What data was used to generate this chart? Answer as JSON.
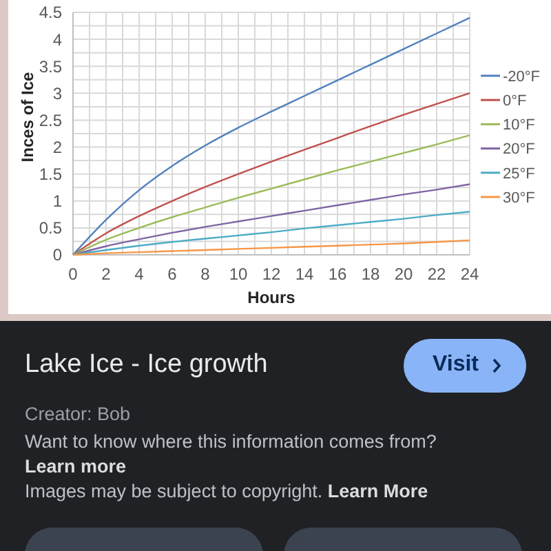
{
  "chart_data": {
    "type": "line",
    "title": "Lake Ice - Ice growth",
    "xlabel": "Hours",
    "ylabel": "Inces of Ice",
    "x": [
      0,
      2,
      4,
      6,
      8,
      10,
      12,
      14,
      16,
      18,
      20,
      22,
      24
    ],
    "series": [
      {
        "name": "-20°F",
        "color": "#4f81bd",
        "values": [
          0,
          0.65,
          1.2,
          1.65,
          2.03,
          2.36,
          2.66,
          2.95,
          3.24,
          3.53,
          3.82,
          4.11,
          4.4
        ]
      },
      {
        "name": "0°F",
        "color": "#c0504d",
        "values": [
          0,
          0.4,
          0.72,
          1.0,
          1.26,
          1.5,
          1.73,
          1.95,
          2.17,
          2.39,
          2.6,
          2.8,
          3.0
        ]
      },
      {
        "name": "10°F",
        "color": "#9bbb59",
        "values": [
          0,
          0.28,
          0.5,
          0.7,
          0.88,
          1.06,
          1.23,
          1.4,
          1.57,
          1.73,
          1.89,
          2.05,
          2.22
        ]
      },
      {
        "name": "20°F",
        "color": "#8064a2",
        "values": [
          0,
          0.16,
          0.29,
          0.41,
          0.52,
          0.62,
          0.72,
          0.82,
          0.92,
          1.02,
          1.12,
          1.21,
          1.31
        ]
      },
      {
        "name": "25°F",
        "color": "#4bacc6",
        "values": [
          0,
          0.09,
          0.17,
          0.24,
          0.3,
          0.36,
          0.42,
          0.49,
          0.55,
          0.61,
          0.67,
          0.74,
          0.8
        ]
      },
      {
        "name": "30°F",
        "color": "#f79646",
        "values": [
          0,
          0.03,
          0.05,
          0.07,
          0.09,
          0.11,
          0.13,
          0.15,
          0.17,
          0.19,
          0.21,
          0.24,
          0.27
        ]
      }
    ],
    "xlim": [
      0,
      24
    ],
    "xticks": [
      0,
      {
        "value": 1,
        "label": null
      },
      2,
      {
        "value": 3,
        "label": null
      },
      4,
      {
        "value": 5,
        "label": null
      },
      6,
      {
        "value": 7,
        "label": null
      },
      8,
      {
        "value": 9,
        "label": null
      },
      10,
      {
        "value": 11,
        "label": null
      },
      12,
      {
        "value": 13,
        "label": null
      },
      14,
      {
        "value": 15,
        "label": null
      },
      16,
      {
        "value": 17,
        "label": null
      },
      18,
      {
        "value": 19,
        "label": null
      },
      20,
      {
        "value": 21,
        "label": null
      },
      22,
      {
        "value": 23,
        "label": null
      },
      24
    ],
    "ylim": [
      0,
      4.5
    ],
    "yticks": [
      0,
      {
        "value": 0.25,
        "label": null
      },
      0.5,
      {
        "value": 0.75,
        "label": null
      },
      1,
      {
        "value": 1.25,
        "label": null
      },
      1.5,
      {
        "value": 1.75,
        "label": null
      },
      2,
      {
        "value": 2.25,
        "label": null
      },
      2.5,
      {
        "value": 2.75,
        "label": null
      },
      3,
      {
        "value": 3.25,
        "label": null
      },
      3.5,
      {
        "value": 3.75,
        "label": null
      },
      4,
      {
        "value": 4.25,
        "label": null
      },
      4.5
    ],
    "grid": true,
    "legend": "right",
    "annotations": [
      "Visit",
      "Creator: Bob",
      "Want to know where this information comes from?",
      "Learn more",
      "Images may be subject to copyright.",
      "Learn More"
    ]
  }
}
